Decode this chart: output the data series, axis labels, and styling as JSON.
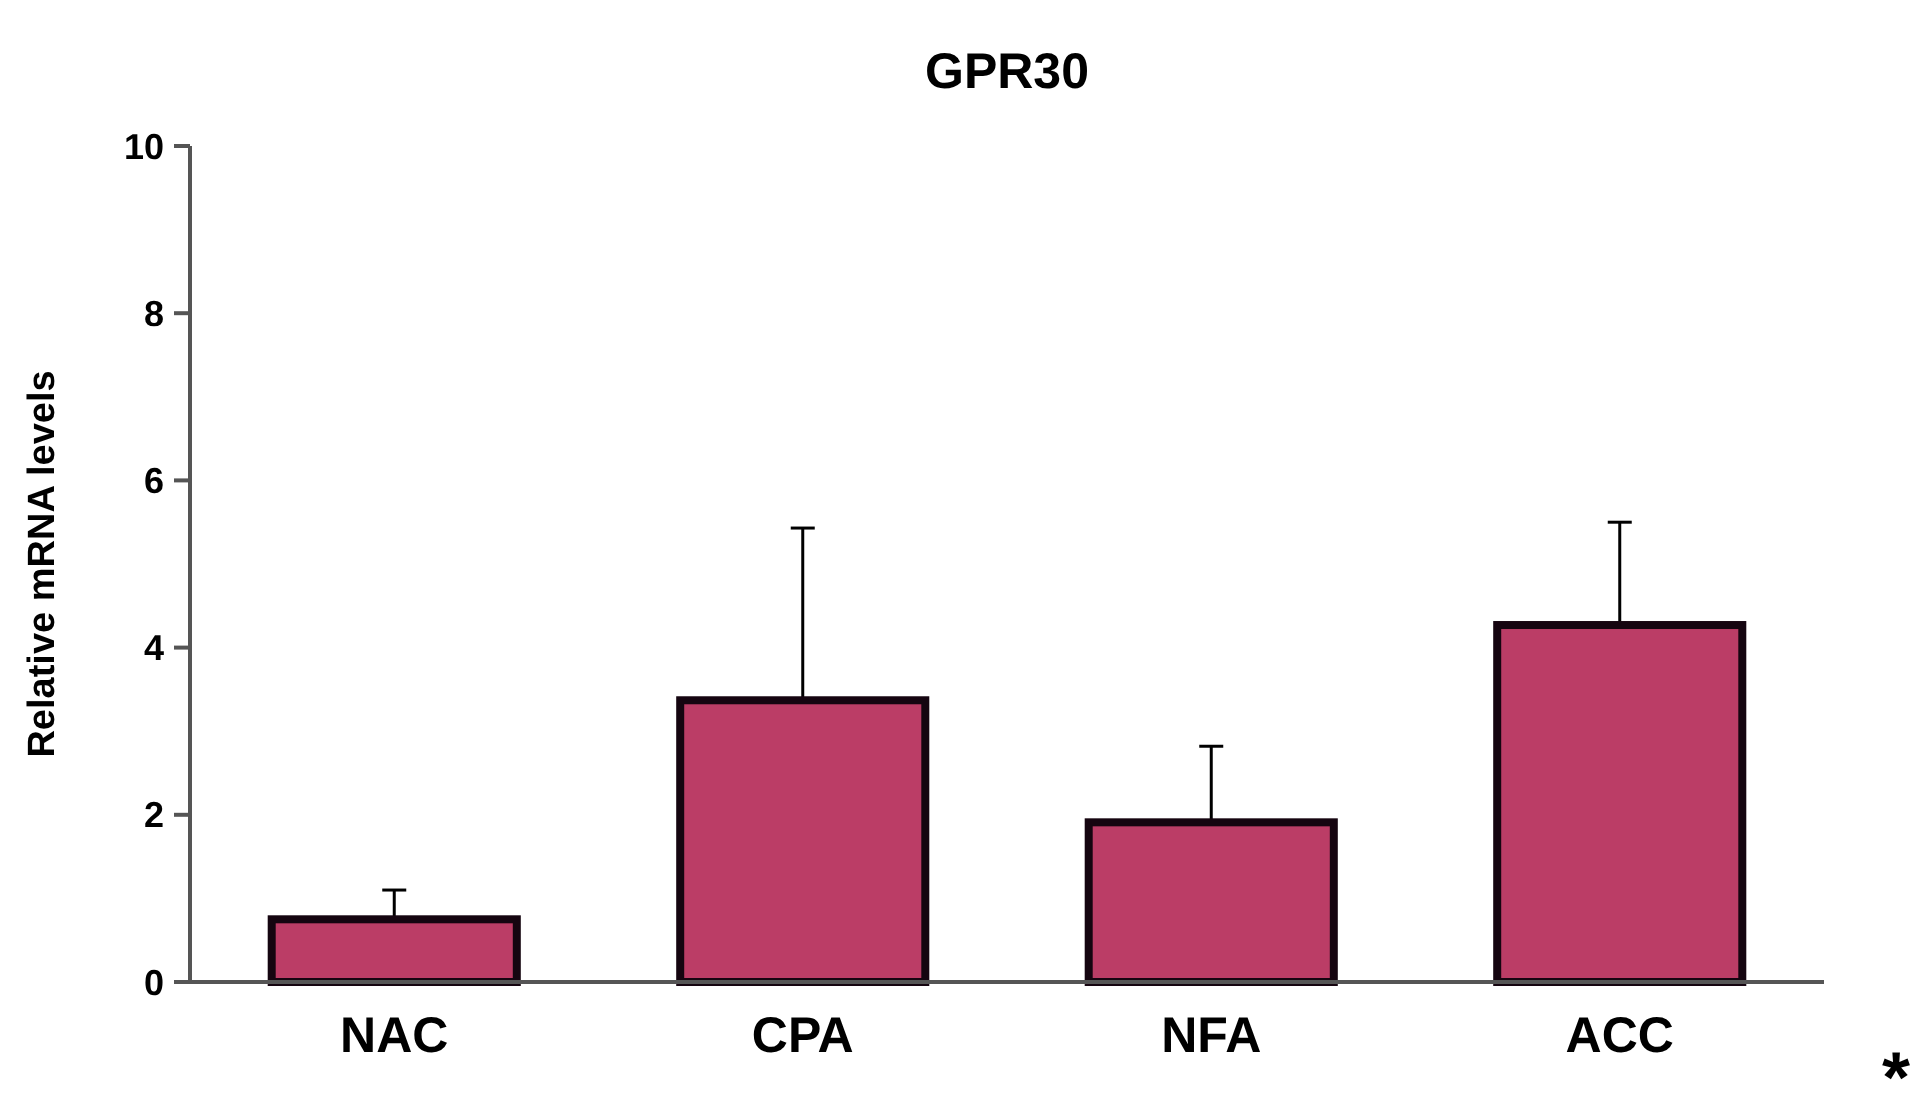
{
  "chart_data": {
    "type": "bar",
    "title": "GPR30",
    "ylabel": "Relative mRNA levels",
    "categories": [
      "NAC",
      "CPA",
      "NFA",
      "ACC"
    ],
    "values": [
      0.75,
      3.37,
      1.91,
      4.27
    ],
    "errors": [
      [
        0.75,
        1.1
      ],
      [
        3.37,
        5.43
      ],
      [
        1.91,
        2.82
      ],
      [
        4.27,
        5.5
      ]
    ],
    "color": "#bb3d66",
    "ylim": [
      0,
      10
    ],
    "yticks": [
      0,
      2,
      4,
      6,
      8,
      10
    ],
    "annotations": [
      "*"
    ]
  }
}
